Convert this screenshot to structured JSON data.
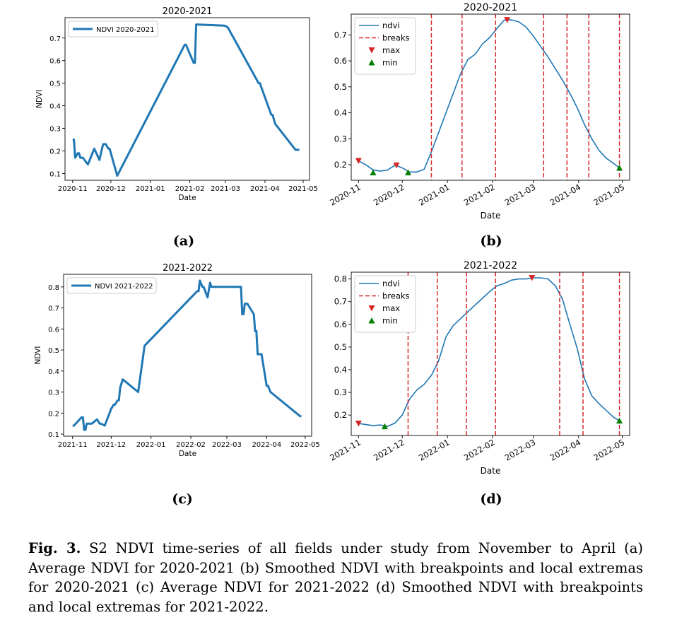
{
  "panels": [
    {
      "id": "a",
      "label": "(a)",
      "chart_data": {
        "type": "line",
        "title": "2020-2021",
        "xlabel": "Date",
        "ylabel": "NDVI",
        "xlim": [
          "2020-10-26",
          "2021-05-06"
        ],
        "ylim": [
          0.07,
          0.79
        ],
        "xticks": [
          "2020-11-01",
          "2020-12-01",
          "2021-01-01",
          "2021-02-01",
          "2021-03-01",
          "2021-04-01",
          "2021-05-01"
        ],
        "xtick_labels": [
          "2020-11",
          "2020-12",
          "2021-01",
          "2021-02",
          "2021-03",
          "2021-04",
          "2021-05"
        ],
        "yticks": [
          0.1,
          0.2,
          0.3,
          0.4,
          0.5,
          0.6,
          0.7
        ],
        "ytick_labels": [
          "0.1",
          "0.2",
          "0.3",
          "0.4",
          "0.5",
          "0.6",
          "0.7"
        ],
        "grid": false,
        "legend": "top-left",
        "series": [
          {
            "name": "NDVI 2020-2021",
            "color": "#1f77b4",
            "x": [
              "2020-11-01",
              "2020-11-02",
              "2020-11-03",
              "2020-11-05",
              "2020-11-06",
              "2020-11-07",
              "2020-11-09",
              "2020-11-13",
              "2020-11-18",
              "2020-11-22",
              "2020-11-24",
              "2020-11-25",
              "2020-11-27",
              "2020-11-29",
              "2020-11-30",
              "2020-12-06",
              "2021-01-28",
              "2021-01-29",
              "2021-02-04",
              "2021-02-05",
              "2021-02-06",
              "2021-02-28",
              "2021-03-02",
              "2021-03-03",
              "2021-03-27",
              "2021-03-28",
              "2021-04-06",
              "2021-04-07",
              "2021-04-09",
              "2021-04-25",
              "2021-04-28"
            ],
            "y": [
              0.25,
              0.25,
              0.17,
              0.19,
              0.19,
              0.17,
              0.17,
              0.14,
              0.21,
              0.16,
              0.21,
              0.23,
              0.23,
              0.21,
              0.21,
              0.09,
              0.67,
              0.67,
              0.59,
              0.59,
              0.76,
              0.755,
              0.75,
              0.745,
              0.5,
              0.5,
              0.36,
              0.36,
              0.32,
              0.205,
              0.205
            ]
          }
        ]
      }
    },
    {
      "id": "b",
      "label": "(b)",
      "chart_data": {
        "type": "line",
        "title": "2020-2021",
        "xlabel": "Date",
        "ylabel": "",
        "xlim": [
          "2020-10-27",
          "2021-05-06"
        ],
        "ylim": [
          0.14,
          0.78
        ],
        "xticks": [
          "2020-11-01",
          "2020-12-01",
          "2021-01-01",
          "2021-02-01",
          "2021-03-01",
          "2021-04-01",
          "2021-05-01"
        ],
        "xtick_labels": [
          "2020-11",
          "2020-12",
          "2021-01",
          "2021-02",
          "2021-03",
          "2021-04",
          "2021-05"
        ],
        "yticks": [
          0.2,
          0.3,
          0.4,
          0.5,
          0.6,
          0.7
        ],
        "ytick_labels": [
          "0.2",
          "0.3",
          "0.4",
          "0.5",
          "0.6",
          "0.7"
        ],
        "grid": false,
        "legend": "top-left",
        "legend_entries": [
          "ndvi",
          "breaks",
          "max",
          "min"
        ],
        "series": [
          {
            "name": "ndvi",
            "color": "#1f77b4",
            "x": [
              "2020-11-01",
              "2020-11-06",
              "2020-11-11",
              "2020-11-16",
              "2020-11-21",
              "2020-11-26",
              "2020-12-01",
              "2020-12-06",
              "2020-12-11",
              "2020-12-16",
              "2020-12-21",
              "2020-12-26",
              "2020-12-31",
              "2021-01-05",
              "2021-01-10",
              "2021-01-15",
              "2021-01-20",
              "2021-01-25",
              "2021-01-30",
              "2021-02-04",
              "2021-02-09",
              "2021-02-14",
              "2021-02-19",
              "2021-02-24",
              "2021-03-01",
              "2021-03-06",
              "2021-03-11",
              "2021-03-16",
              "2021-03-21",
              "2021-03-26",
              "2021-03-31",
              "2021-04-05",
              "2021-04-10",
              "2021-04-15",
              "2021-04-20",
              "2021-04-25",
              "2021-04-29"
            ],
            "y": [
              0.215,
              0.2,
              0.18,
              0.175,
              0.18,
              0.198,
              0.188,
              0.172,
              0.172,
              0.182,
              0.25,
              0.325,
              0.4,
              0.475,
              0.55,
              0.605,
              0.625,
              0.665,
              0.69,
              0.725,
              0.757,
              0.758,
              0.75,
              0.73,
              0.695,
              0.655,
              0.615,
              0.57,
              0.525,
              0.475,
              0.42,
              0.355,
              0.3,
              0.255,
              0.225,
              0.205,
              0.188
            ]
          },
          {
            "name": "breaks",
            "color": "#d62728",
            "style": "dashed",
            "x": [
              "2020-12-21",
              "2021-01-11",
              "2021-02-03",
              "2021-03-08",
              "2021-03-24",
              "2021-04-08",
              "2021-04-29"
            ]
          },
          {
            "name": "max",
            "color": "#d62728",
            "marker": "triangle-down",
            "x": [
              "2020-11-01",
              "2020-11-27",
              "2021-02-11"
            ],
            "y": [
              0.215,
              0.198,
              0.758
            ]
          },
          {
            "name": "min",
            "color": "#008000",
            "marker": "triangle-up",
            "x": [
              "2020-11-11",
              "2020-12-05",
              "2021-04-29"
            ],
            "y": [
              0.17,
              0.17,
              0.188
            ]
          }
        ]
      }
    },
    {
      "id": "c",
      "label": "(c)",
      "chart_data": {
        "type": "line",
        "title": "2021-2022",
        "xlabel": "Date",
        "ylabel": "NDVI",
        "xlim": [
          "2021-10-25",
          "2022-05-06"
        ],
        "ylim": [
          0.09,
          0.86
        ],
        "xticks": [
          "2021-11-01",
          "2021-12-01",
          "2022-01-01",
          "2022-02-01",
          "2022-03-01",
          "2022-04-01",
          "2022-05-01"
        ],
        "xtick_labels": [
          "2021-11",
          "2021-12",
          "2022-01",
          "2022-02",
          "2022-03",
          "2022-04",
          "2022-05"
        ],
        "yticks": [
          0.1,
          0.2,
          0.3,
          0.4,
          0.5,
          0.6,
          0.7,
          0.8
        ],
        "ytick_labels": [
          "0.1",
          "0.2",
          "0.3",
          "0.4",
          "0.5",
          "0.6",
          "0.7",
          "0.8"
        ],
        "grid": false,
        "legend": "top-left",
        "series": [
          {
            "name": "NDVI 2021-2022",
            "color": "#1f77b4",
            "x": [
              "2021-11-01",
              "2021-11-02",
              "2021-11-08",
              "2021-11-09",
              "2021-11-10",
              "2021-11-11",
              "2021-11-12",
              "2021-11-15",
              "2021-11-16",
              "2021-11-20",
              "2021-11-22",
              "2021-11-23",
              "2021-11-26",
              "2021-12-01",
              "2021-12-03",
              "2021-12-04",
              "2021-12-06",
              "2021-12-07",
              "2021-12-08",
              "2021-12-10",
              "2021-12-22",
              "2021-12-27",
              "2022-02-06",
              "2022-02-07",
              "2022-02-08",
              "2022-02-10",
              "2022-02-11",
              "2022-02-14",
              "2022-02-16",
              "2022-02-17",
              "2022-03-12",
              "2022-03-13",
              "2022-03-14",
              "2022-03-15",
              "2022-03-17",
              "2022-03-21",
              "2022-03-22",
              "2022-03-23",
              "2022-03-24",
              "2022-03-25",
              "2022-03-28",
              "2022-04-01",
              "2022-04-02",
              "2022-04-04",
              "2022-04-27",
              "2022-04-28"
            ],
            "y": [
              0.14,
              0.14,
              0.18,
              0.18,
              0.12,
              0.12,
              0.15,
              0.15,
              0.15,
              0.17,
              0.15,
              0.15,
              0.14,
              0.22,
              0.24,
              0.24,
              0.26,
              0.26,
              0.32,
              0.36,
              0.3,
              0.52,
              0.78,
              0.78,
              0.83,
              0.8,
              0.8,
              0.75,
              0.82,
              0.8,
              0.8,
              0.67,
              0.67,
              0.72,
              0.72,
              0.68,
              0.67,
              0.59,
              0.59,
              0.48,
              0.48,
              0.33,
              0.33,
              0.3,
              0.185,
              0.185
            ]
          }
        ]
      }
    },
    {
      "id": "d",
      "label": "(d)",
      "chart_data": {
        "type": "line",
        "title": "2021-2022",
        "xlabel": "Date",
        "ylabel": "",
        "xlim": [
          "2021-10-27",
          "2022-05-06"
        ],
        "ylim": [
          0.11,
          0.83
        ],
        "xticks": [
          "2021-11-01",
          "2021-12-01",
          "2022-01-01",
          "2022-02-01",
          "2022-03-01",
          "2022-04-01",
          "2022-05-01"
        ],
        "xtick_labels": [
          "2021-11",
          "2021-12",
          "2022-01",
          "2022-02",
          "2022-03",
          "2022-04",
          "2022-05"
        ],
        "yticks": [
          0.2,
          0.3,
          0.4,
          0.5,
          0.6,
          0.7,
          0.8
        ],
        "ytick_labels": [
          "0.2",
          "0.3",
          "0.4",
          "0.5",
          "0.6",
          "0.7",
          "0.8"
        ],
        "grid": false,
        "legend": "top-left",
        "legend_entries": [
          "ndvi",
          "breaks",
          "max",
          "min"
        ],
        "series": [
          {
            "name": "ndvi",
            "color": "#1f77b4",
            "x": [
              "2021-11-01",
              "2021-11-06",
              "2021-11-11",
              "2021-11-16",
              "2021-11-21",
              "2021-11-26",
              "2021-12-01",
              "2021-12-06",
              "2021-12-11",
              "2021-12-16",
              "2021-12-21",
              "2021-12-26",
              "2021-12-31",
              "2022-01-05",
              "2022-01-10",
              "2022-01-15",
              "2022-01-20",
              "2022-01-25",
              "2022-01-30",
              "2022-02-04",
              "2022-02-09",
              "2022-02-14",
              "2022-02-19",
              "2022-02-24",
              "2022-03-01",
              "2022-03-06",
              "2022-03-11",
              "2022-03-16",
              "2022-03-21",
              "2022-03-26",
              "2022-03-31",
              "2022-04-05",
              "2022-04-10",
              "2022-04-15",
              "2022-04-20",
              "2022-04-25",
              "2022-04-29"
            ],
            "y": [
              0.163,
              0.158,
              0.154,
              0.156,
              0.15,
              0.165,
              0.2,
              0.27,
              0.31,
              0.335,
              0.375,
              0.44,
              0.545,
              0.595,
              0.625,
              0.655,
              0.685,
              0.715,
              0.745,
              0.77,
              0.78,
              0.795,
              0.8,
              0.8,
              0.805,
              0.805,
              0.8,
              0.77,
              0.71,
              0.6,
              0.495,
              0.36,
              0.285,
              0.25,
              0.22,
              0.19,
              0.175
            ]
          },
          {
            "name": "breaks",
            "color": "#d62728",
            "style": "dashed",
            "x": [
              "2021-12-05",
              "2021-12-25",
              "2022-01-14",
              "2022-02-03",
              "2022-03-19",
              "2022-04-04",
              "2022-04-29"
            ]
          },
          {
            "name": "max",
            "color": "#d62728",
            "marker": "triangle-down",
            "x": [
              "2021-11-01",
              "2022-02-28"
            ],
            "y": [
              0.163,
              0.805
            ]
          },
          {
            "name": "min",
            "color": "#008000",
            "marker": "triangle-up",
            "x": [
              "2021-11-19",
              "2022-04-29"
            ],
            "y": [
              0.15,
              0.175
            ]
          }
        ]
      }
    }
  ],
  "caption": {
    "label": "Fig. 3.",
    "text": " S2 NDVI time-series of all fields under study from November to April (a) Average NDVI for 2020-2021 (b) Smoothed NDVI with breakpoints and local extremas for 2020-2021 (c) Average NDVI for 2021-2022 (d) Smoothed NDVI with breakpoints and local extremas for 2021-2022."
  }
}
